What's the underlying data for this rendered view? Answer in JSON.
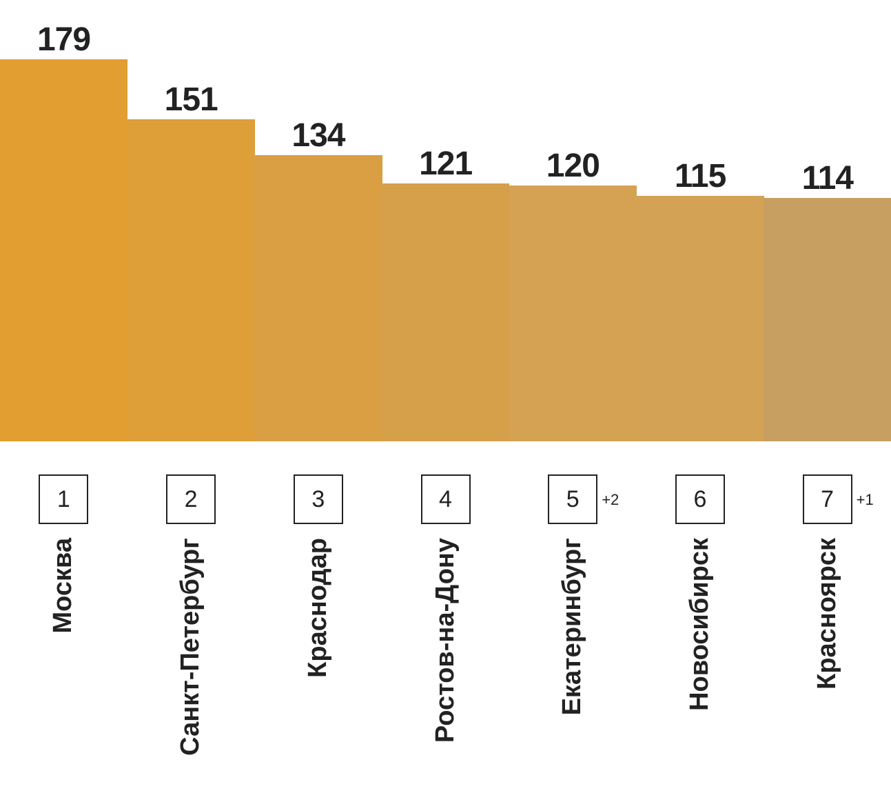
{
  "chart_data": {
    "type": "bar",
    "categories": [
      "Москва",
      "Санкт-Петербург",
      "Краснодар",
      "Ростов-на-Дону",
      "Екатеринбург",
      "Новосибирск",
      "Красноярск"
    ],
    "values": [
      179,
      151,
      134,
      121,
      120,
      115,
      114
    ],
    "ranks": [
      "1",
      "2",
      "3",
      "4",
      "5",
      "6",
      "7"
    ],
    "rank_changes": [
      "",
      "",
      "",
      "",
      "+2",
      "",
      "+1"
    ],
    "colors": [
      "#E29E30",
      "#DE9E38",
      "#D99F42",
      "#D6A04A",
      "#D4A252",
      "#D3A254",
      "#C79F60"
    ],
    "ylim": [
      0,
      179
    ],
    "grid": false,
    "title": "",
    "xlabel": "",
    "ylabel": ""
  }
}
